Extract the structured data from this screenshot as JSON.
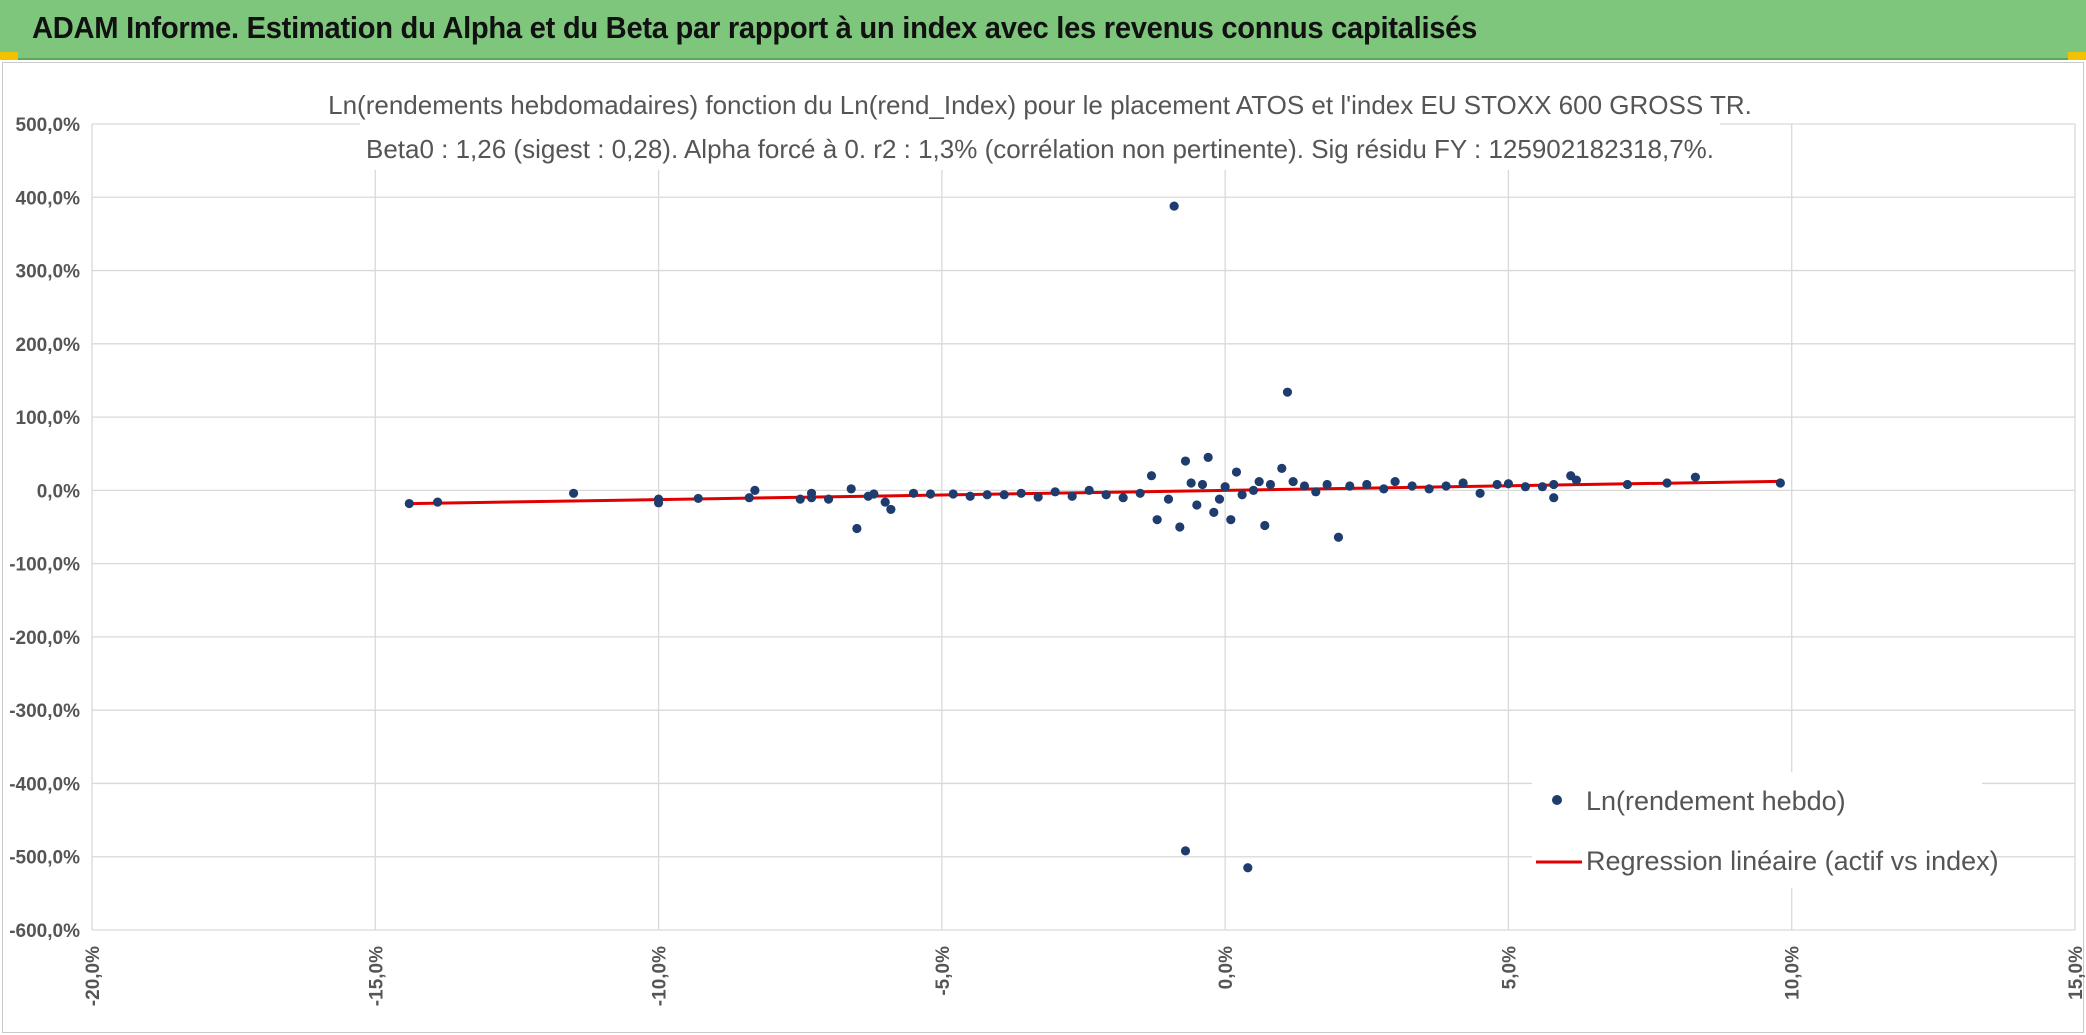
{
  "window": {
    "title": "ADAM Informe. Estimation du Alpha et du Beta par rapport à un index avec les revenus connus capitalisés"
  },
  "colors": {
    "banner": "#7dc67c",
    "points": "#1f3c6e",
    "regression": "#e00000",
    "grid": "#d9d9d9",
    "accent": "#f2c200"
  },
  "chart_data": {
    "type": "scatter",
    "title": "Ln(rendements hebdomadaires) fonction du Ln(rend_Index) pour le placement ATOS et l'index EU STOXX 600 GROSS TR.",
    "subtitle": "Beta0 : 1,26 (sigest : 0,28). Alpha forcé à 0. r2 : 1,3% (corrélation non pertinente). Sig résidu FY : 125902182318,7%.",
    "xlabel": "",
    "ylabel": "",
    "xlim": [
      -20,
      15
    ],
    "ylim": [
      -600,
      500
    ],
    "x_ticks": [
      "-20,0%",
      "-15,0%",
      "-10,0%",
      "-5,0%",
      "0,0%",
      "5,0%",
      "10,0%",
      "15,0%"
    ],
    "y_ticks": [
      "500,0%",
      "400,0%",
      "300,0%",
      "200,0%",
      "100,0%",
      "0,0%",
      "-100,0%",
      "-200,0%",
      "-300,0%",
      "-400,0%",
      "-500,0%",
      "-600,0%"
    ],
    "grid": true,
    "legend_position": "bottom-right",
    "series": [
      {
        "name": "Ln(rendement hebdo)",
        "kind": "scatter",
        "points": [
          [
            -14.4,
            -18
          ],
          [
            -13.9,
            -16
          ],
          [
            -11.5,
            -4
          ],
          [
            -10.0,
            -17
          ],
          [
            -10.0,
            -12
          ],
          [
            -9.3,
            -11
          ],
          [
            -8.4,
            -10
          ],
          [
            -8.3,
            0
          ],
          [
            -7.5,
            -12
          ],
          [
            -7.3,
            -4
          ],
          [
            -7.3,
            -10
          ],
          [
            -7.0,
            -12
          ],
          [
            -6.6,
            2
          ],
          [
            -6.5,
            -52
          ],
          [
            -6.3,
            -8
          ],
          [
            -6.2,
            -5
          ],
          [
            -6.0,
            -16
          ],
          [
            -5.9,
            -26
          ],
          [
            -5.5,
            -4
          ],
          [
            -5.2,
            -5
          ],
          [
            -4.8,
            -5
          ],
          [
            -4.5,
            -8
          ],
          [
            -4.2,
            -6
          ],
          [
            -3.9,
            -6
          ],
          [
            -3.6,
            -4
          ],
          [
            -3.3,
            -9
          ],
          [
            -3.0,
            -2
          ],
          [
            -2.7,
            -8
          ],
          [
            -2.4,
            0
          ],
          [
            -2.1,
            -6
          ],
          [
            -1.8,
            -10
          ],
          [
            -1.5,
            -4
          ],
          [
            -1.3,
            20
          ],
          [
            -1.2,
            -40
          ],
          [
            -1.0,
            -12
          ],
          [
            -0.9,
            388
          ],
          [
            -0.8,
            -50
          ],
          [
            -0.7,
            40
          ],
          [
            -0.7,
            -492
          ],
          [
            -0.6,
            10
          ],
          [
            -0.5,
            -20
          ],
          [
            -0.4,
            8
          ],
          [
            -0.3,
            45
          ],
          [
            -0.2,
            -30
          ],
          [
            -0.1,
            -12
          ],
          [
            0.0,
            5
          ],
          [
            0.1,
            -40
          ],
          [
            0.2,
            25
          ],
          [
            0.3,
            -6
          ],
          [
            0.4,
            -515
          ],
          [
            0.5,
            0
          ],
          [
            0.6,
            12
          ],
          [
            0.7,
            -48
          ],
          [
            0.8,
            8
          ],
          [
            1.0,
            30
          ],
          [
            1.1,
            134
          ],
          [
            1.2,
            12
          ],
          [
            1.4,
            6
          ],
          [
            1.6,
            -2
          ],
          [
            1.8,
            8
          ],
          [
            2.0,
            -64
          ],
          [
            2.2,
            6
          ],
          [
            2.5,
            8
          ],
          [
            2.8,
            2
          ],
          [
            3.0,
            12
          ],
          [
            3.3,
            6
          ],
          [
            3.6,
            2
          ],
          [
            3.9,
            6
          ],
          [
            4.2,
            10
          ],
          [
            4.5,
            -4
          ],
          [
            4.8,
            8
          ],
          [
            5.0,
            9
          ],
          [
            5.3,
            5
          ],
          [
            5.6,
            5
          ],
          [
            5.8,
            8
          ],
          [
            5.8,
            -10
          ],
          [
            6.1,
            20
          ],
          [
            6.2,
            14
          ],
          [
            7.1,
            8
          ],
          [
            7.8,
            10
          ],
          [
            8.3,
            18
          ],
          [
            9.8,
            10
          ]
        ]
      },
      {
        "name": "Regression linéaire (actif vs index)",
        "kind": "line",
        "x": [
          -14.4,
          9.8
        ],
        "y": [
          -18.1,
          12.3
        ]
      }
    ]
  }
}
